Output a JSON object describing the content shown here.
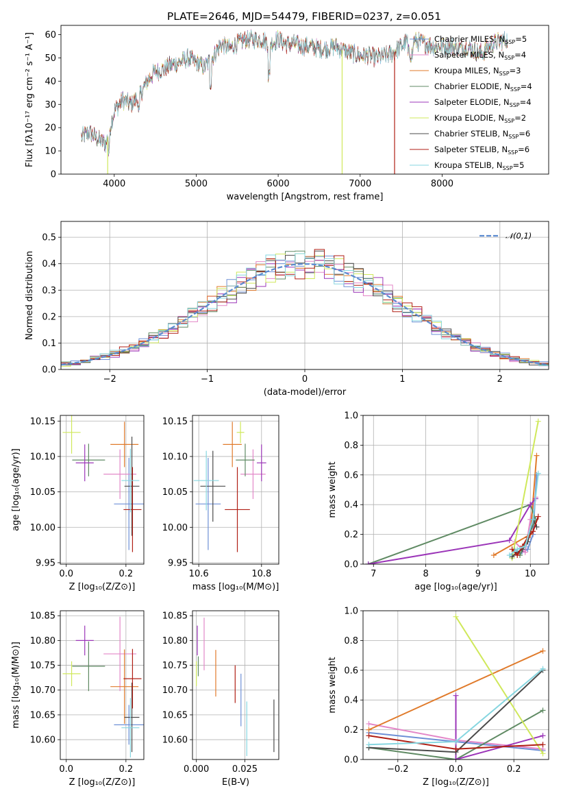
{
  "figure_title": "PLATE=2646, MJD=54479, FIBERID=0237, z=0.051",
  "models": [
    {
      "name": "Chabrier MILES, N$_{SSP}$=5",
      "label_base": "Chabrier MILES, N",
      "label_sub": "SSP",
      "label_n": "=5",
      "color": "#6d8fd6"
    },
    {
      "name": "Salpeter MILES, N$_{SSP}$=4",
      "label_base": "Salpeter MILES, N",
      "label_sub": "SSP",
      "label_n": "=4",
      "color": "#e387c8"
    },
    {
      "name": "Kroupa MILES, N$_{SSP}$=3",
      "label_base": "Kroupa MILES, N",
      "label_sub": "SSP",
      "label_n": "=3",
      "color": "#e07a2a"
    },
    {
      "name": "Chabrier ELODIE, N$_{SSP}$=4",
      "label_base": "Chabrier ELODIE, N",
      "label_sub": "SSP",
      "label_n": "=4",
      "color": "#5f8a63"
    },
    {
      "name": "Salpeter ELODIE, N$_{SSP}$=4",
      "label_base": "Salpeter ELODIE, N",
      "label_sub": "SSP",
      "label_n": "=4",
      "color": "#9b35b8"
    },
    {
      "name": "Kroupa ELODIE, N$_{SSP}$=2",
      "label_base": "Kroupa ELODIE, N",
      "label_sub": "SSP",
      "label_n": "=2",
      "color": "#cfe85a"
    },
    {
      "name": "Chabrier STELIB, N$_{SSP}$=6",
      "label_base": "Chabrier STELIB, N",
      "label_sub": "SSP",
      "label_n": "=6",
      "color": "#4a4a4a"
    },
    {
      "name": "Salpeter STELIB, N$_{SSP}$=6",
      "label_base": "Salpeter STELIB, N",
      "label_sub": "SSP",
      "label_n": "=6",
      "color": "#b01e14"
    },
    {
      "name": "Kroupa STELIB, N$_{SSP}$=5",
      "label_base": "Kroupa STELIB, N",
      "label_sub": "SSP",
      "label_n": "=5",
      "color": "#86d6e0"
    }
  ],
  "chart_data": [
    {
      "id": "spectrum",
      "type": "line",
      "xlabel": "wavelength [Angstrom, rest frame]",
      "ylabel": "Flux [f$_\\lambda$10$^{-17}$ erg cm$^{-2}$ s$^{-1}$ A$^{-1}$]",
      "xlim": [
        3350,
        9300
      ],
      "ylim": [
        0,
        64
      ],
      "xticks": [
        4000,
        5000,
        6000,
        7000,
        8000
      ],
      "yticks": [
        0,
        10,
        20,
        30,
        40,
        50,
        60
      ],
      "grid": false,
      "legend": "upper right",
      "continuum": {
        "x": [
          3600,
          3700,
          3800,
          3900,
          3950,
          4000,
          4100,
          4200,
          4300,
          4400,
          4500,
          4600,
          4700,
          4800,
          4900,
          5000,
          5100,
          5200,
          5300,
          5400,
          5500,
          5600,
          5700,
          5800,
          5900,
          6000,
          6100,
          6200,
          6300,
          6400,
          6500,
          6600,
          6700,
          6800,
          6900,
          7000,
          7100,
          7200,
          7300,
          7400,
          7500,
          7600,
          7700,
          7800,
          7900,
          8000,
          8100,
          8200,
          8300,
          8400,
          8500,
          8600,
          8700,
          8800
        ],
        "y": [
          16,
          18,
          15,
          13,
          20,
          27,
          32,
          30,
          33,
          40,
          44,
          45,
          47,
          48,
          50,
          48,
          46,
          50,
          56,
          54,
          56,
          58,
          58,
          58,
          56,
          58,
          56,
          56,
          55,
          55,
          54,
          54,
          55,
          53,
          52,
          51,
          51,
          50,
          51,
          52,
          55,
          58,
          57,
          56,
          55,
          55,
          55,
          54,
          55,
          53,
          52,
          56,
          57,
          58
        ]
      },
      "dropouts": [
        {
          "model": "Kroupa ELODIE, N$_{SSP}$=2",
          "x": 3920
        },
        {
          "model": "Kroupa ELODIE, N$_{SSP}$=2",
          "x": 6780
        },
        {
          "model": "Salpeter STELIB, N$_{SSP}$=6",
          "x": 7420
        }
      ]
    },
    {
      "id": "residuals",
      "type": "bar",
      "xlabel": "(data-model)/error",
      "ylabel": "Normed distribution",
      "xlim": [
        -2.5,
        2.5
      ],
      "ylim": [
        0,
        0.56
      ],
      "xticks": [
        -2,
        -1,
        0,
        1,
        2
      ],
      "yticks": [
        0.0,
        0.1,
        0.2,
        0.3,
        0.4,
        0.5
      ],
      "grid": true,
      "legend": "upper right",
      "reference_label": "$\\mathcal{N}(0,1)$",
      "reference": "standard normal pdf",
      "bin_width": 0.1
    },
    {
      "id": "age-vs-Z",
      "type": "scatter",
      "xlabel": "Z [log$_{10}$($Z/Z_\\odot$)]",
      "ylabel": "age  [log$_{10}$($age/yr$)]",
      "xlim": [
        -0.02,
        0.26
      ],
      "ylim": [
        9.948,
        10.158
      ],
      "xticks": [
        0.0,
        0.2
      ],
      "yticks": [
        9.95,
        10.0,
        10.05,
        10.1,
        10.15
      ],
      "grid": true,
      "points": [
        {
          "model": "Chabrier MILES, N$_{SSP}$=5",
          "x": 0.21,
          "y": 10.033,
          "xerr": 0.05,
          "yerr": 0.065
        },
        {
          "model": "Salpeter MILES, N$_{SSP}$=4",
          "x": 0.18,
          "y": 10.075,
          "xerr": 0.055,
          "yerr": 0.035
        },
        {
          "model": "Kroupa MILES, N$_{SSP}$=3",
          "x": 0.195,
          "y": 10.117,
          "xerr": 0.047,
          "yerr": 0.032
        },
        {
          "model": "Chabrier ELODIE, N$_{SSP}$=4",
          "x": 0.075,
          "y": 10.095,
          "xerr": 0.055,
          "yerr": 0.023
        },
        {
          "model": "Salpeter ELODIE, N$_{SSP}$=4",
          "x": 0.062,
          "y": 10.091,
          "xerr": 0.03,
          "yerr": 0.026
        },
        {
          "model": "Kroupa ELODIE, N$_{SSP}$=2",
          "x": 0.018,
          "y": 10.134,
          "xerr": 0.03,
          "yerr": 0.03
        },
        {
          "model": "Chabrier STELIB, N$_{SSP}$=6",
          "x": 0.22,
          "y": 10.058,
          "xerr": 0.025,
          "yerr": 0.07
        },
        {
          "model": "Salpeter STELIB, N$_{SSP}$=6",
          "x": 0.222,
          "y": 10.025,
          "xerr": 0.03,
          "yerr": 0.06
        },
        {
          "model": "Kroupa STELIB, N$_{SSP}$=5",
          "x": 0.215,
          "y": 10.066,
          "xerr": 0.03,
          "yerr": 0.045
        }
      ]
    },
    {
      "id": "age-vs-mass",
      "type": "scatter",
      "xlabel": "mass [log$_{10}$($M/M_\\odot$)]",
      "ylabel": "",
      "xlim": [
        10.58,
        10.855
      ],
      "ylim": [
        9.948,
        10.158
      ],
      "xticks": [
        10.6,
        10.8
      ],
      "yticks": [
        9.95,
        10.0,
        10.05,
        10.1,
        10.15
      ],
      "grid": true,
      "points": [
        {
          "model": "Chabrier MILES, N$_{SSP}$=5",
          "x": 10.63,
          "y": 10.033,
          "xerr": 0.04,
          "yerr": 0.065
        },
        {
          "model": "Salpeter MILES, N$_{SSP}$=4",
          "x": 10.773,
          "y": 10.075,
          "xerr": 0.04,
          "yerr": 0.035
        },
        {
          "model": "Kroupa MILES, N$_{SSP}$=3",
          "x": 10.707,
          "y": 10.117,
          "xerr": 0.03,
          "yerr": 0.032
        },
        {
          "model": "Chabrier ELODIE, N$_{SSP}$=4",
          "x": 10.748,
          "y": 10.095,
          "xerr": 0.03,
          "yerr": 0.023
        },
        {
          "model": "Salpeter ELODIE, N$_{SSP}$=4",
          "x": 10.8,
          "y": 10.091,
          "xerr": 0.015,
          "yerr": 0.026
        },
        {
          "model": "Kroupa ELODIE, N$_{SSP}$=2",
          "x": 10.733,
          "y": 10.134,
          "xerr": 0.012,
          "yerr": 0.015
        },
        {
          "model": "Chabrier STELIB, N$_{SSP}$=6",
          "x": 10.645,
          "y": 10.058,
          "xerr": 0.04,
          "yerr": 0.05
        },
        {
          "model": "Salpeter STELIB, N$_{SSP}$=6",
          "x": 10.723,
          "y": 10.025,
          "xerr": 0.04,
          "yerr": 0.06
        },
        {
          "model": "Kroupa STELIB, N$_{SSP}$=5",
          "x": 10.624,
          "y": 10.066,
          "xerr": 0.04,
          "yerr": 0.042
        }
      ]
    },
    {
      "id": "weight-vs-age",
      "type": "line",
      "xlabel": "age  [log$_{10}$($age/yr$)]",
      "ylabel": "mass weight",
      "xlim": [
        6.8,
        10.35
      ],
      "ylim": [
        0,
        1.0
      ],
      "xticks": [
        7,
        8,
        9,
        10
      ],
      "yticks": [
        0.0,
        0.2,
        0.4,
        0.6,
        0.8,
        1.0
      ],
      "grid": true,
      "series": [
        {
          "model": "Chabrier MILES, N$_{SSP}$=5",
          "x": [
            9.7,
            9.8,
            9.95,
            10.05,
            10.12
          ],
          "y": [
            0.1,
            0.07,
            0.1,
            0.2,
            0.6
          ]
        },
        {
          "model": "Salpeter MILES, N$_{SSP}$=4",
          "x": [
            9.7,
            9.9,
            10.0,
            10.1
          ],
          "y": [
            0.15,
            0.08,
            0.3,
            0.45
          ]
        },
        {
          "model": "Kroupa MILES, N$_{SSP}$=3",
          "x": [
            9.3,
            10.0,
            10.12
          ],
          "y": [
            0.06,
            0.2,
            0.73
          ]
        },
        {
          "model": "Chabrier ELODIE, N$_{SSP}$=4",
          "x": [
            6.9,
            10.0,
            10.1,
            9.8
          ],
          "y": [
            0.0,
            0.4,
            0.3,
            0.06
          ]
        },
        {
          "model": "Salpeter ELODIE, N$_{SSP}$=4",
          "x": [
            6.9,
            9.6,
            10.0,
            10.1
          ],
          "y": [
            0.0,
            0.16,
            0.4,
            0.44
          ]
        },
        {
          "model": "Kroupa ELODIE, N$_{SSP}$=2",
          "x": [
            9.65,
            10.15
          ],
          "y": [
            0.04,
            0.96
          ]
        },
        {
          "model": "Chabrier STELIB, N$_{SSP}$=6",
          "x": [
            9.65,
            9.75,
            9.85,
            9.95,
            10.05,
            10.12
          ],
          "y": [
            0.05,
            0.08,
            0.1,
            0.15,
            0.3,
            0.25
          ]
        },
        {
          "model": "Salpeter STELIB, N$_{SSP}$=6",
          "x": [
            9.65,
            9.75,
            9.85,
            9.95,
            10.05,
            10.15
          ],
          "y": [
            0.1,
            0.06,
            0.12,
            0.18,
            0.22,
            0.32
          ]
        },
        {
          "model": "Kroupa STELIB, N$_{SSP}$=5",
          "x": [
            9.6,
            9.75,
            9.9,
            10.05,
            10.15
          ],
          "y": [
            0.06,
            0.1,
            0.12,
            0.3,
            0.61
          ]
        }
      ]
    },
    {
      "id": "mass-vs-Z",
      "type": "scatter",
      "xlabel": "Z [log$_{10}$($Z/Z_\\odot$)]",
      "ylabel": "mass [log$_{10}$($M/M_\\odot$)]",
      "xlim": [
        -0.02,
        0.26
      ],
      "ylim": [
        10.56,
        10.86
      ],
      "xticks": [
        0.0,
        0.2
      ],
      "yticks": [
        10.6,
        10.65,
        10.7,
        10.75,
        10.8,
        10.85
      ],
      "grid": true,
      "points": [
        {
          "model": "Chabrier MILES, N$_{SSP}$=5",
          "x": 0.21,
          "y": 10.63,
          "xerr": 0.05,
          "yerr": 0.04
        },
        {
          "model": "Salpeter MILES, N$_{SSP}$=4",
          "x": 0.18,
          "y": 10.773,
          "xerr": 0.055,
          "yerr": 0.075
        },
        {
          "model": "Kroupa MILES, N$_{SSP}$=3",
          "x": 0.195,
          "y": 10.707,
          "xerr": 0.047,
          "yerr": 0.075
        },
        {
          "model": "Chabrier ELODIE, N$_{SSP}$=4",
          "x": 0.075,
          "y": 10.748,
          "xerr": 0.055,
          "yerr": 0.05
        },
        {
          "model": "Salpeter ELODIE, N$_{SSP}$=4",
          "x": 0.062,
          "y": 10.8,
          "xerr": 0.03,
          "yerr": 0.03
        },
        {
          "model": "Kroupa ELODIE, N$_{SSP}$=2",
          "x": 0.018,
          "y": 10.733,
          "xerr": 0.03,
          "yerr": 0.025
        },
        {
          "model": "Chabrier STELIB, N$_{SSP}$=6",
          "x": 0.22,
          "y": 10.645,
          "xerr": 0.025,
          "yerr": 0.07
        },
        {
          "model": "Salpeter STELIB, N$_{SSP}$=6",
          "x": 0.222,
          "y": 10.723,
          "xerr": 0.03,
          "yerr": 0.06
        },
        {
          "model": "Kroupa STELIB, N$_{SSP}$=5",
          "x": 0.215,
          "y": 10.624,
          "xerr": 0.03,
          "yerr": 0.06
        }
      ]
    },
    {
      "id": "mass-vs-ebv",
      "type": "scatter",
      "xlabel": "E(B-V)",
      "ylabel": "",
      "xlim": [
        -0.002,
        0.0425
      ],
      "ylim": [
        10.56,
        10.86
      ],
      "xticks": [
        0.0,
        0.025
      ],
      "yticks": [
        10.6,
        10.65,
        10.7,
        10.75,
        10.8,
        10.85
      ],
      "grid": true,
      "points": [
        {
          "model": "Chabrier MILES, N$_{SSP}$=5",
          "x": 0.023,
          "y": 10.68,
          "xerr": 0,
          "yerr": 0.053
        },
        {
          "model": "Salpeter MILES, N$_{SSP}$=4",
          "x": 0.004,
          "y": 10.793,
          "xerr": 0,
          "yerr": 0.053
        },
        {
          "model": "Kroupa MILES, N$_{SSP}$=3",
          "x": 0.01,
          "y": 10.734,
          "xerr": 0,
          "yerr": 0.047
        },
        {
          "model": "Chabrier ELODIE, N$_{SSP}$=4",
          "x": 0.001,
          "y": 10.748,
          "xerr": 0,
          "yerr": 0.02
        },
        {
          "model": "Salpeter ELODIE, N$_{SSP}$=4",
          "x": 0.0005,
          "y": 10.8,
          "xerr": 0,
          "yerr": 0.03
        },
        {
          "model": "Kroupa ELODIE, N$_{SSP}$=2",
          "x": 0.0,
          "y": 10.733,
          "xerr": 0,
          "yerr": 0.025
        },
        {
          "model": "Chabrier STELIB, N$_{SSP}$=6",
          "x": 0.04,
          "y": 10.628,
          "xerr": 0,
          "yerr": 0.053
        },
        {
          "model": "Salpeter STELIB, N$_{SSP}$=6",
          "x": 0.02,
          "y": 10.712,
          "xerr": 0,
          "yerr": 0.038
        },
        {
          "model": "Kroupa STELIB, N$_{SSP}$=5",
          "x": 0.026,
          "y": 10.622,
          "xerr": 0,
          "yerr": 0.055
        }
      ]
    },
    {
      "id": "weight-vs-Z",
      "type": "line",
      "xlabel": "Z [log$_{10}$($Z/Z_\\odot$)]",
      "ylabel": "mass weight",
      "xlim": [
        -0.32,
        0.32
      ],
      "ylim": [
        0,
        1.0
      ],
      "xticks": [
        -0.2,
        0.0,
        0.2
      ],
      "yticks": [
        0.0,
        0.2,
        0.4,
        0.6,
        0.8,
        1.0
      ],
      "grid": true,
      "series": [
        {
          "model": "Chabrier MILES, N$_{SSP}$=5",
          "x": [
            -0.3,
            0.0,
            0.3
          ],
          "y": [
            0.18,
            0.12,
            0.06
          ]
        },
        {
          "model": "Salpeter MILES, N$_{SSP}$=4",
          "x": [
            -0.3,
            0.0,
            0.3
          ],
          "y": [
            0.24,
            0.13,
            0.07
          ]
        },
        {
          "model": "Kroupa MILES, N$_{SSP}$=3",
          "x": [
            -0.3,
            0.3
          ],
          "y": [
            0.2,
            0.73
          ]
        },
        {
          "model": "Chabrier ELODIE, N$_{SSP}$=4",
          "x": [
            -0.3,
            0.0,
            0.3
          ],
          "y": [
            0.08,
            0.0,
            0.33
          ]
        },
        {
          "model": "Salpeter ELODIE, N$_{SSP}$=4",
          "x": [
            0.0,
            0.0,
            0.3
          ],
          "y": [
            0.43,
            0.0,
            0.16
          ]
        },
        {
          "model": "Kroupa ELODIE, N$_{SSP}$=2",
          "x": [
            0.0,
            0.3
          ],
          "y": [
            0.96,
            0.04
          ]
        },
        {
          "model": "Chabrier STELIB, N$_{SSP}$=6",
          "x": [
            -0.3,
            0.0,
            0.3
          ],
          "y": [
            0.08,
            0.05,
            0.6
          ]
        },
        {
          "model": "Salpeter STELIB, N$_{SSP}$=6",
          "x": [
            -0.3,
            0.0,
            0.3
          ],
          "y": [
            0.16,
            0.07,
            0.1
          ]
        },
        {
          "model": "Kroupa STELIB, N$_{SSP}$=5",
          "x": [
            -0.3,
            0.0,
            0.3
          ],
          "y": [
            0.1,
            0.12,
            0.61
          ]
        }
      ]
    }
  ]
}
